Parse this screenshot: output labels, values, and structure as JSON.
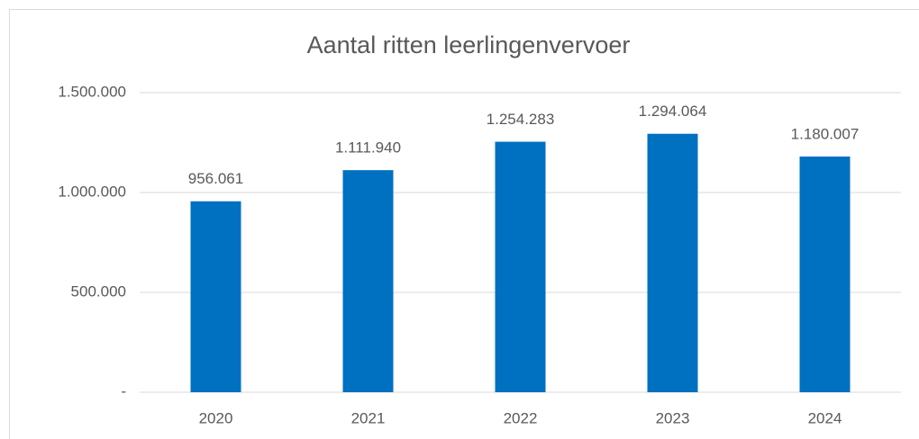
{
  "chart_data": {
    "type": "bar",
    "title": "Aantal ritten leerlingenvervoer",
    "categories": [
      "2020",
      "2021",
      "2022",
      "2023",
      "2024"
    ],
    "values": [
      956061,
      1111940,
      1254283,
      1294064,
      1180007
    ],
    "value_labels": [
      "956.061",
      "1.111.940",
      "1.254.283",
      "1.294.064",
      "1.180.007"
    ],
    "color": "#0070c0",
    "ylim": [
      0,
      1500000
    ],
    "yticks": [
      {
        "value": 0,
        "label": "-"
      },
      {
        "value": 500000,
        "label": "500.000"
      },
      {
        "value": 1000000,
        "label": "1.000.000"
      },
      {
        "value": 1500000,
        "label": "1.500.000"
      }
    ],
    "grid": true
  }
}
